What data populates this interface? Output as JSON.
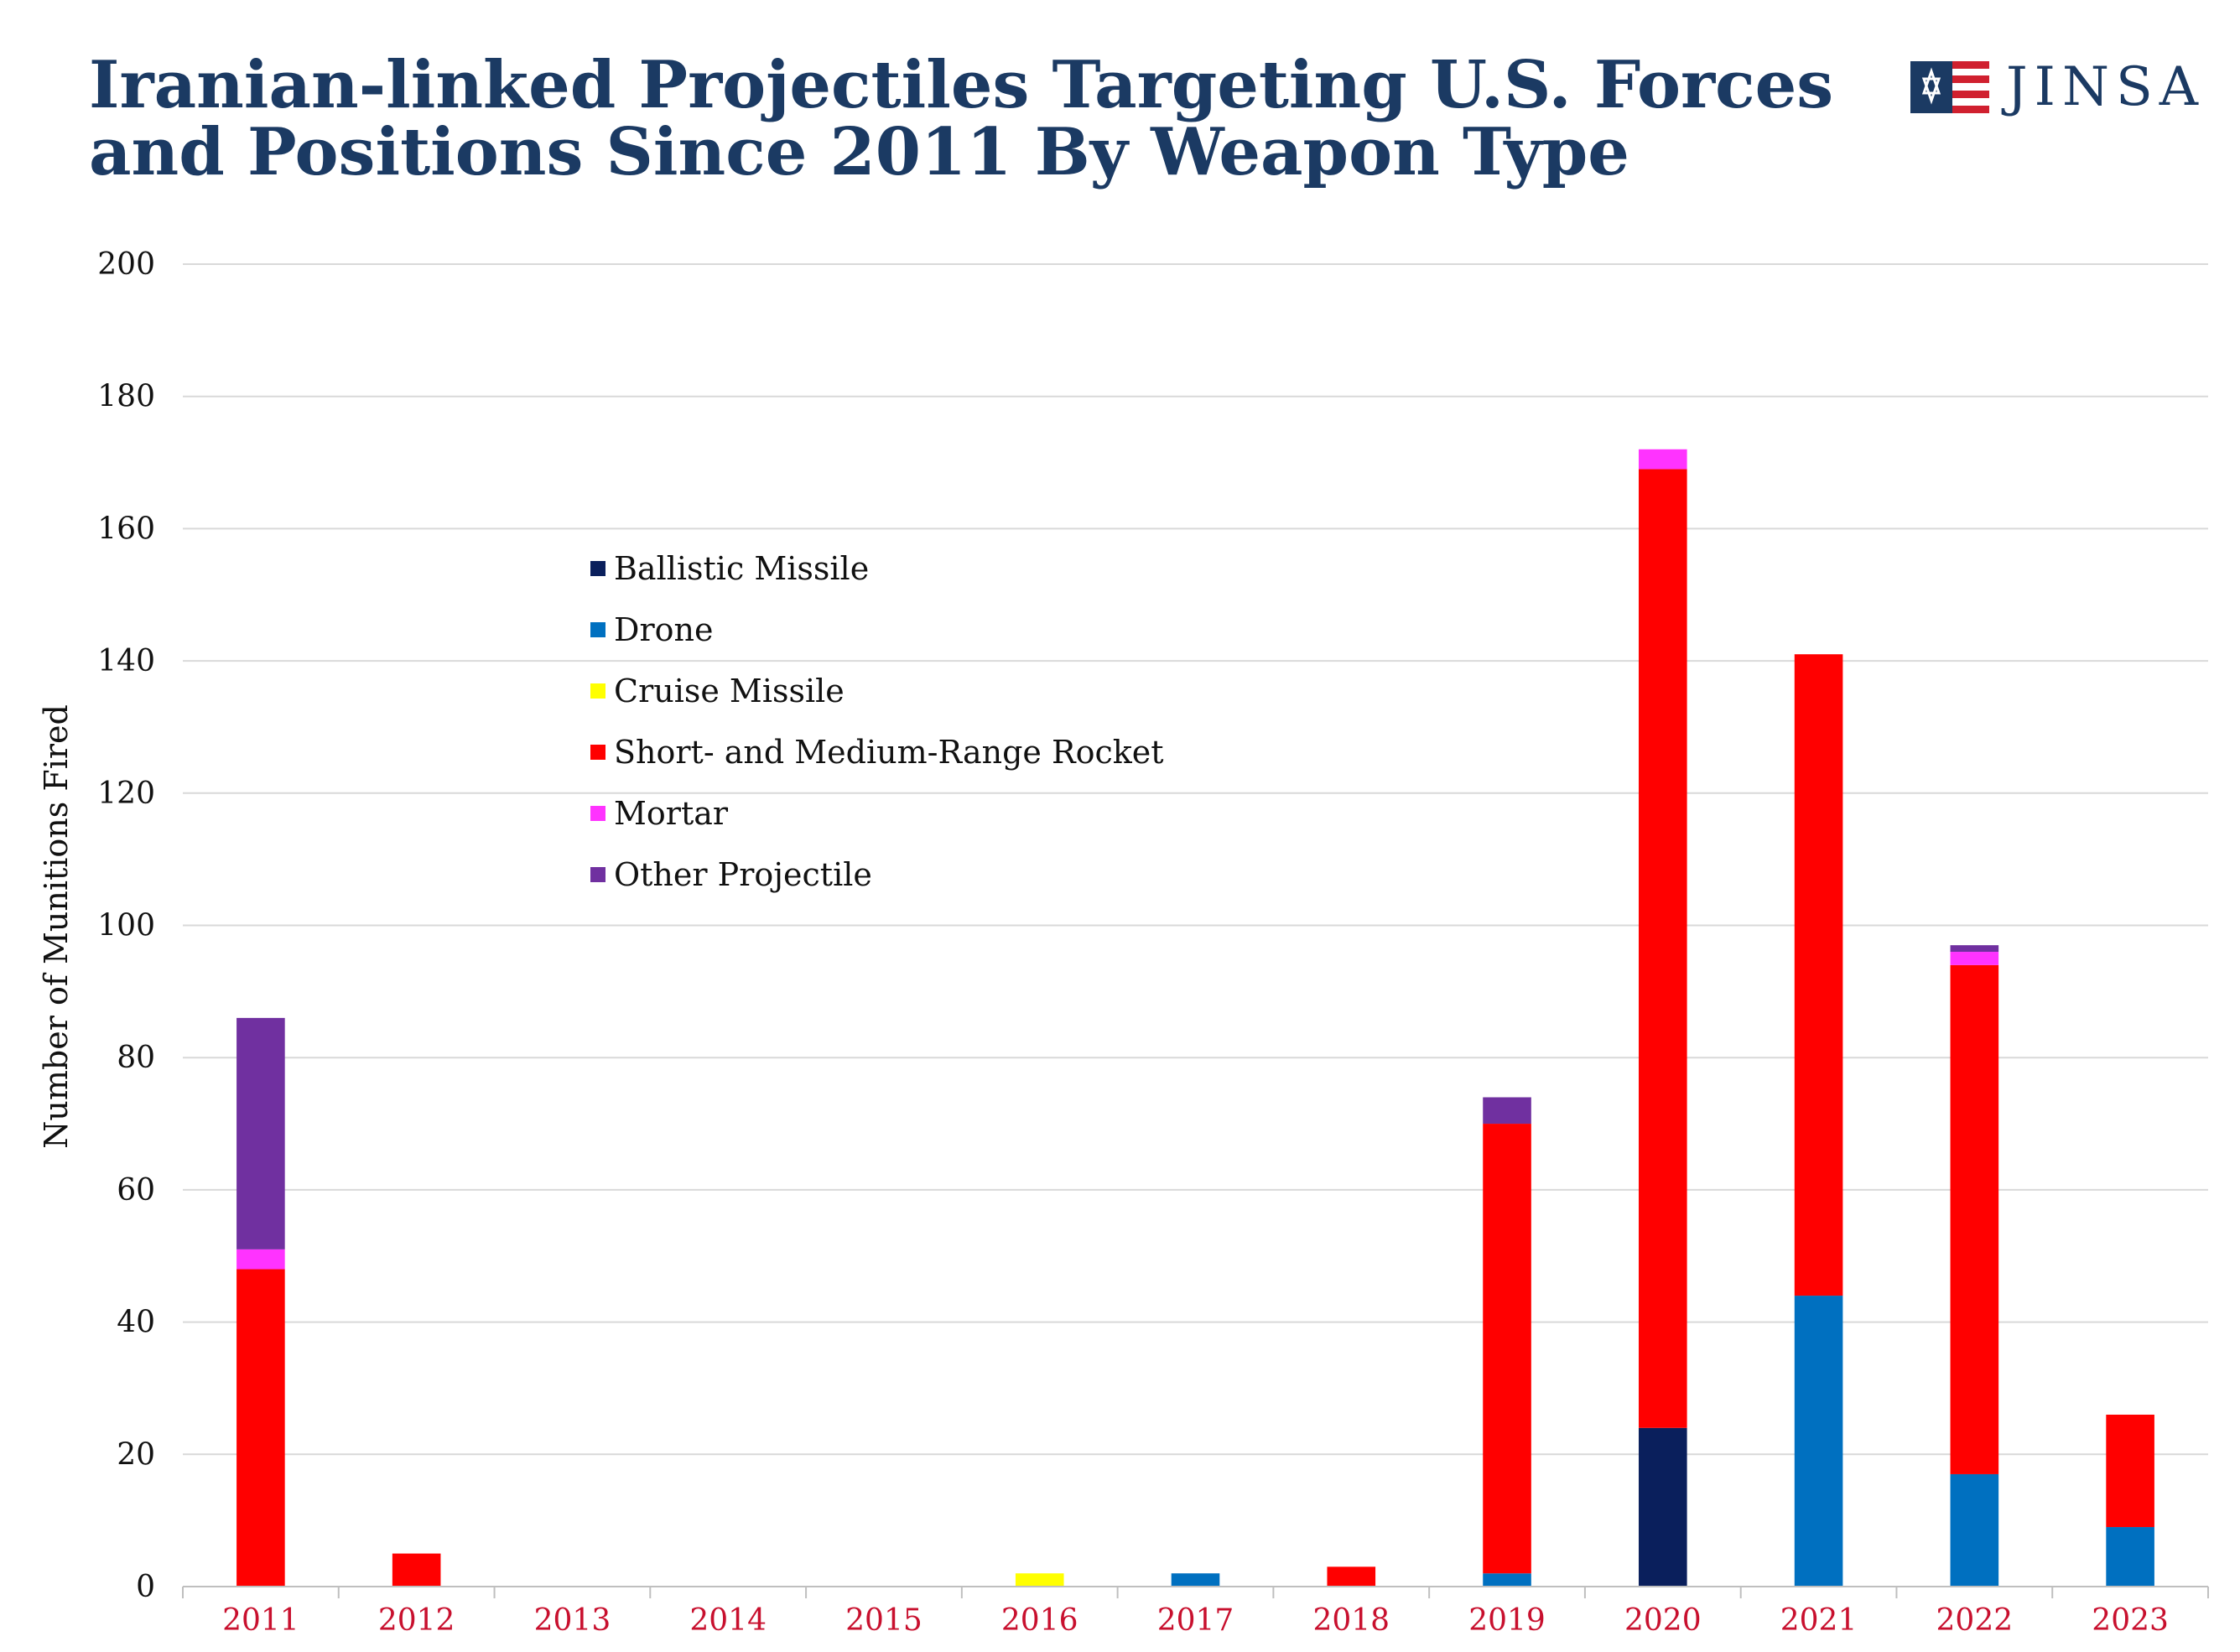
{
  "title_line1": "Iranian-linked Projectiles Targeting U.S. Forces",
  "title_line2": "and Positions Since 2011 By Weapon Type",
  "logo": {
    "text": "JINSA",
    "icon": "star-of-david-flag-icon"
  },
  "chart_data": {
    "type": "bar",
    "stacked": true,
    "title": "Iranian-linked Projectiles Targeting U.S. Forces and Positions Since 2011 By Weapon Type",
    "xlabel": "",
    "ylabel": "Number of Munitions Fired",
    "ylim": [
      0,
      200
    ],
    "yticks": [
      0,
      20,
      40,
      60,
      80,
      100,
      120,
      140,
      160,
      180,
      200
    ],
    "grid": true,
    "legend_position": "upper-left",
    "categories": [
      "2011",
      "2012",
      "2013",
      "2014",
      "2015",
      "2016",
      "2017",
      "2018",
      "2019",
      "2020",
      "2021",
      "2022",
      "2023"
    ],
    "series": [
      {
        "name": "Ballistic Missile",
        "color": "#0a1f5c",
        "values": [
          0,
          0,
          0,
          0,
          0,
          0,
          0,
          0,
          0,
          24,
          0,
          0,
          0
        ]
      },
      {
        "name": "Drone",
        "color": "#0070c0",
        "values": [
          0,
          0,
          0,
          0,
          0,
          0,
          2,
          0,
          2,
          0,
          44,
          17,
          9
        ]
      },
      {
        "name": "Cruise Missile",
        "color": "#ffff00",
        "values": [
          0,
          0,
          0,
          0,
          0,
          2,
          0,
          0,
          0,
          0,
          0,
          0,
          0
        ]
      },
      {
        "name": "Short- and Medium-Range Rocket",
        "color": "#ff0000",
        "values": [
          48,
          5,
          0,
          0,
          0,
          0,
          0,
          3,
          68,
          145,
          97,
          77,
          17
        ]
      },
      {
        "name": "Mortar",
        "color": "#ff33ff",
        "values": [
          3,
          0,
          0,
          0,
          0,
          0,
          0,
          0,
          0,
          3,
          0,
          2,
          0
        ]
      },
      {
        "name": "Other Projectile",
        "color": "#7030a0",
        "values": [
          35,
          0,
          0,
          0,
          0,
          0,
          0,
          0,
          4,
          0,
          0,
          1,
          0
        ]
      }
    ]
  }
}
